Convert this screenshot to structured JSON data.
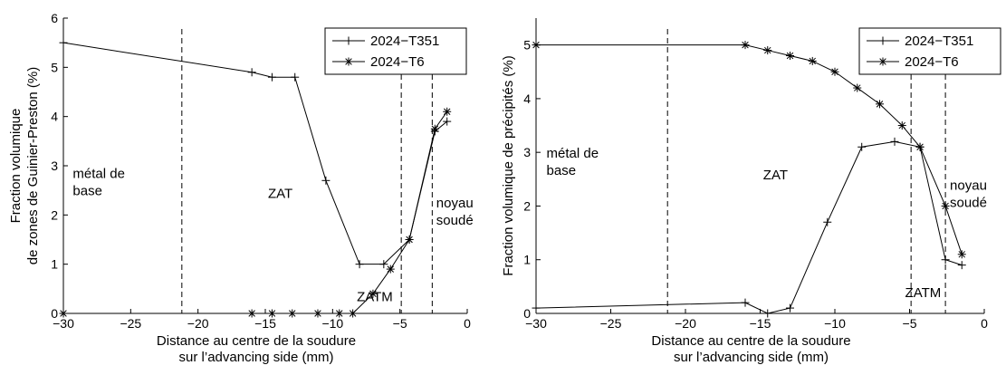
{
  "chart_data": [
    {
      "type": "line",
      "ylabel": [
        "Fraction volumique",
        "de zones de Guinier-Preston (%)"
      ],
      "xlabel": [
        "Distance au centre de la soudure",
        "sur l’advancing side (mm)"
      ],
      "xlim": [
        -30,
        0
      ],
      "ylim": [
        0,
        6
      ],
      "xticks": [
        -30,
        -25,
        -20,
        -15,
        -10,
        -5,
        0
      ],
      "xtick_labels": [
        "−30",
        "−25",
        "−20",
        "−15",
        "−10",
        "−5",
        "0"
      ],
      "yticks": [
        0,
        1,
        2,
        3,
        4,
        5,
        6
      ],
      "ytick_labels": [
        "0",
        "1",
        "2",
        "3",
        "4",
        "5",
        "6"
      ],
      "grid": false,
      "legend_position": "top-right",
      "boundaries_x": [
        -21.2,
        -4.9,
        -2.6
      ],
      "regions": [
        {
          "lines": [
            "métal de",
            "base"
          ],
          "x": -29.3,
          "y": 2.75
        },
        {
          "lines": [
            "ZAT"
          ],
          "x": -14.8,
          "y": 2.35
        },
        {
          "lines": [
            "noyau",
            "soudé"
          ],
          "x": -2.3,
          "y": 2.15
        },
        {
          "lines": [
            "ZATM"
          ],
          "x": -8.2,
          "y": 0.25
        }
      ],
      "series": [
        {
          "name": "2024−T351",
          "marker": "plus",
          "x": [
            -30,
            -16,
            -14.5,
            -12.8,
            -10.5,
            -8,
            -6.2,
            -4.3,
            -2.4,
            -1.5
          ],
          "y": [
            5.5,
            4.9,
            4.8,
            4.8,
            2.7,
            1.0,
            1.0,
            1.5,
            3.7,
            3.9
          ]
        },
        {
          "name": "2024−T6",
          "marker": "asterisk",
          "x": [
            -30,
            -16,
            -14.5,
            -13,
            -11.1,
            -9.5,
            -8.5,
            -7,
            -5.7,
            -4.3,
            -2.4,
            -1.5
          ],
          "y": [
            0,
            0,
            0,
            0,
            0,
            0,
            0,
            0.4,
            0.9,
            1.5,
            3.75,
            4.1
          ]
        }
      ]
    },
    {
      "type": "line",
      "ylabel": [
        "Fraction volumique de précipités (%)"
      ],
      "xlabel": [
        "Distance au centre de la soudure",
        "sur l’advancing side (mm)"
      ],
      "xlim": [
        -30,
        0
      ],
      "ylim": [
        0,
        5.5
      ],
      "xticks": [
        -30,
        -25,
        -20,
        -15,
        -10,
        -5,
        0
      ],
      "xtick_labels": [
        "−30",
        "−25",
        "−20",
        "−15",
        "−10",
        "−5",
        "0"
      ],
      "yticks": [
        0,
        1,
        2,
        3,
        4,
        5
      ],
      "ytick_labels": [
        "0",
        "1",
        "2",
        "3",
        "4",
        "5"
      ],
      "grid": false,
      "legend_position": "top-right",
      "boundaries_x": [
        -21.2,
        -4.9,
        -2.6
      ],
      "regions": [
        {
          "lines": [
            "métal de",
            "base"
          ],
          "x": -29.3,
          "y": 2.9
        },
        {
          "lines": [
            "ZAT"
          ],
          "x": -14.8,
          "y": 2.5
        },
        {
          "lines": [
            "noyau",
            "soudé"
          ],
          "x": -2.3,
          "y": 2.3
        },
        {
          "lines": [
            "ZATM"
          ],
          "x": -5.3,
          "y": 0.3
        }
      ],
      "series": [
        {
          "name": "2024−T351",
          "marker": "plus",
          "x": [
            -30,
            -16,
            -14.5,
            -13,
            -10.5,
            -8.2,
            -6,
            -4.3,
            -2.6,
            -1.5
          ],
          "y": [
            0.1,
            0.2,
            0.0,
            0.1,
            1.7,
            3.1,
            3.2,
            3.1,
            1.0,
            0.9
          ]
        },
        {
          "name": "2024−T6",
          "marker": "asterisk",
          "x": [
            -30,
            -16,
            -14.5,
            -13,
            -11.5,
            -10,
            -8.5,
            -7,
            -5.5,
            -4.3,
            -2.6,
            -1.5
          ],
          "y": [
            5,
            5,
            4.9,
            4.8,
            4.7,
            4.5,
            4.2,
            3.9,
            3.5,
            3.1,
            2.0,
            1.1
          ]
        }
      ]
    }
  ]
}
